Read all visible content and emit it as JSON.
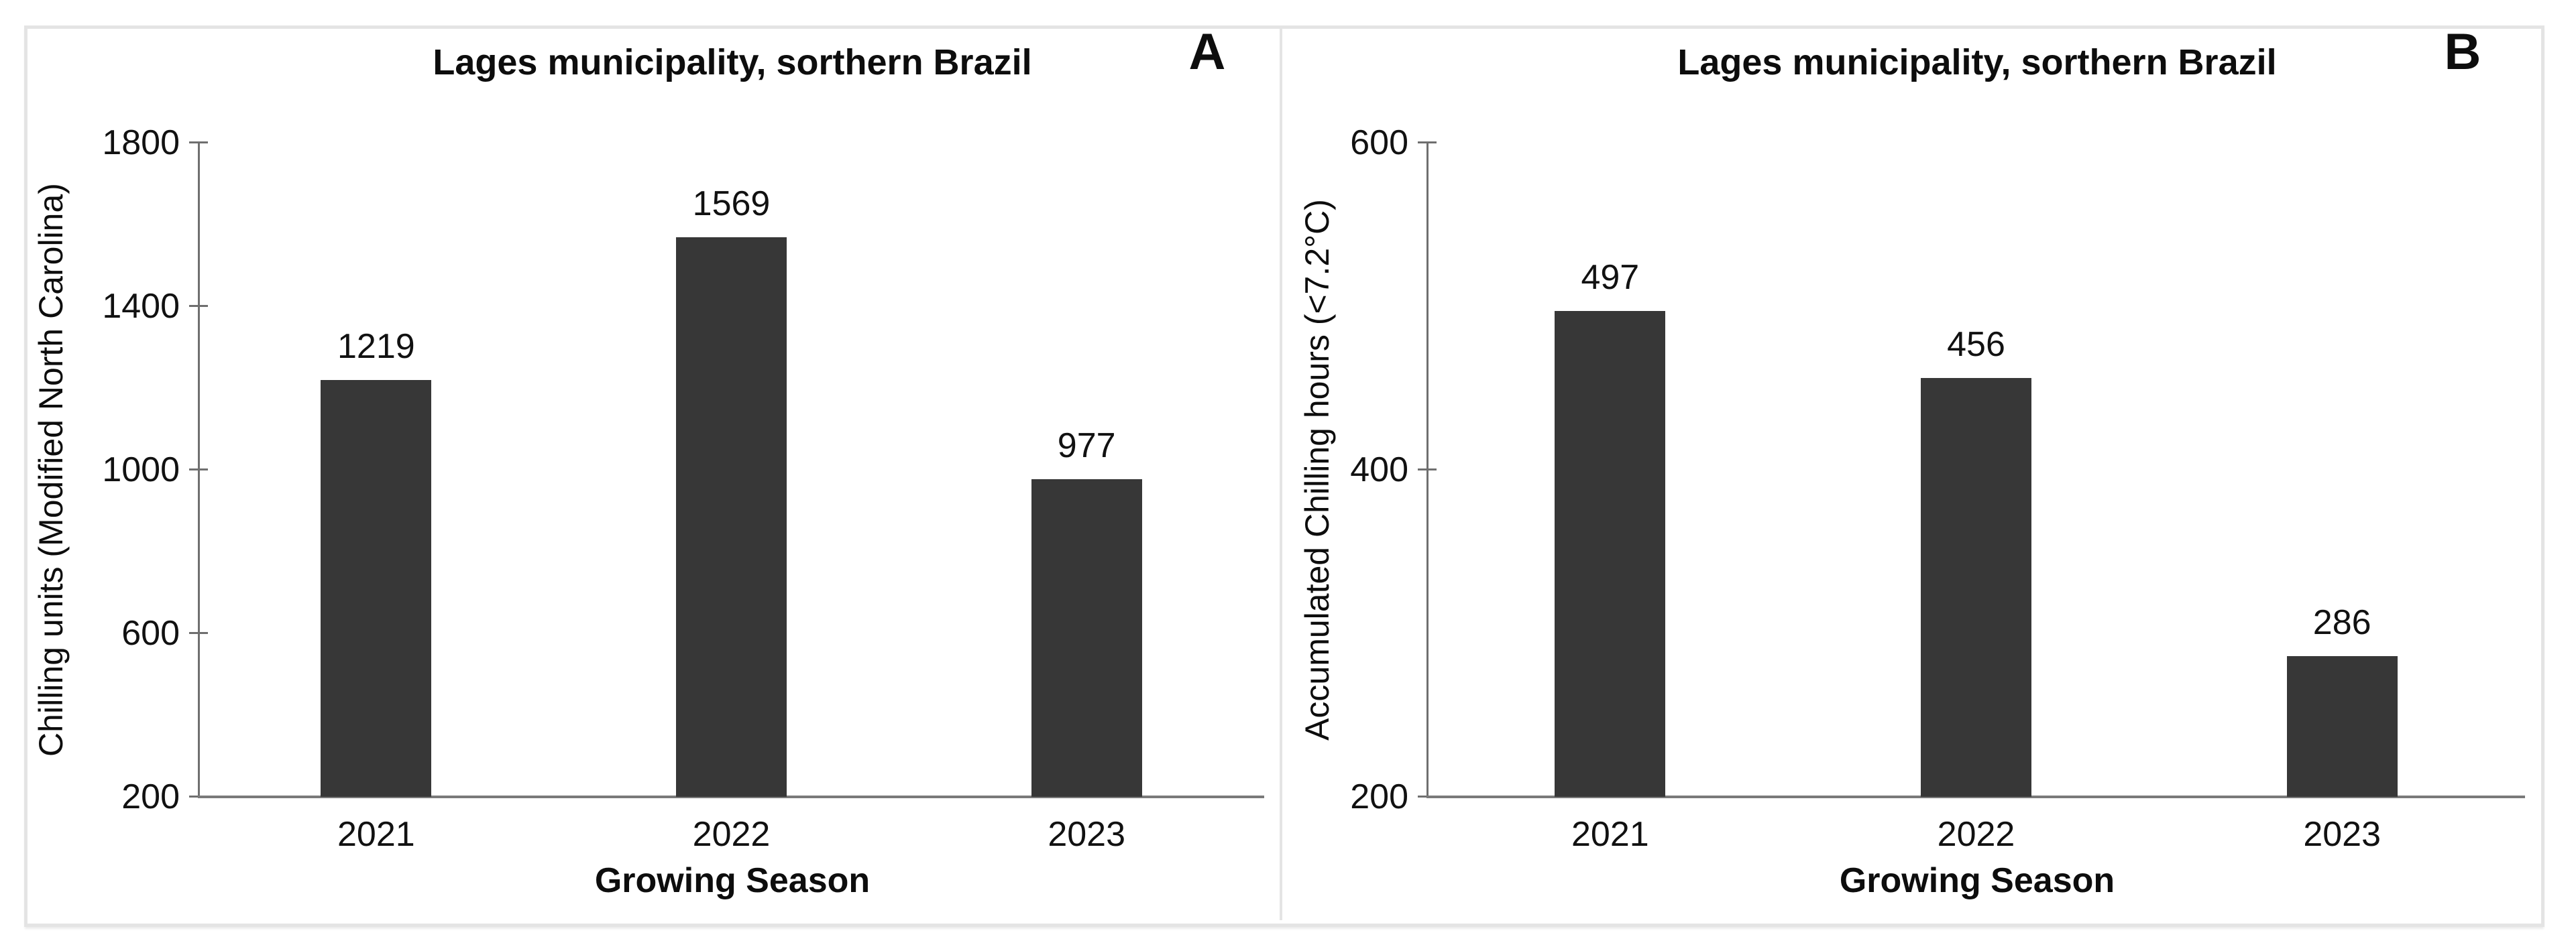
{
  "figure": {
    "frame_border_color": "#e4e4e4",
    "background_color": "#ffffff",
    "text_color": "#0d0d0d"
  },
  "chart_data": [
    {
      "type": "bar",
      "panel_letter": "A",
      "title": "Lages municipality, sorthern Brazil",
      "xlabel": "Growing Season",
      "ylabel": "Chilling units (Modified North Carolina)",
      "categories": [
        "2021",
        "2022",
        "2023"
      ],
      "values": [
        1219,
        1569,
        977
      ],
      "value_labels": [
        "1219",
        "1569",
        "977"
      ],
      "yticks": [
        200,
        600,
        1000,
        1400,
        1800
      ],
      "ytick_labels": [
        "200",
        "600",
        "1000",
        "1400",
        "1800"
      ],
      "ylim": [
        200,
        1800
      ],
      "grid": false,
      "legend": "none",
      "bar_color": "#373737",
      "axis_color": "#6f6f6f"
    },
    {
      "type": "bar",
      "panel_letter": "B",
      "title": "Lages municipality, sorthern Brazil",
      "xlabel": "Growing Season",
      "ylabel": "Accumulated Chilling hours (<7.2°C)",
      "categories": [
        "2021",
        "2022",
        "2023"
      ],
      "values": [
        497,
        456,
        286
      ],
      "value_labels": [
        "497",
        "456",
        "286"
      ],
      "yticks": [
        200,
        400,
        600
      ],
      "ytick_labels": [
        "200",
        "400",
        "600"
      ],
      "ylim": [
        200,
        600
      ],
      "grid": false,
      "legend": "none",
      "bar_color": "#373737",
      "axis_color": "#6f6f6f"
    }
  ]
}
